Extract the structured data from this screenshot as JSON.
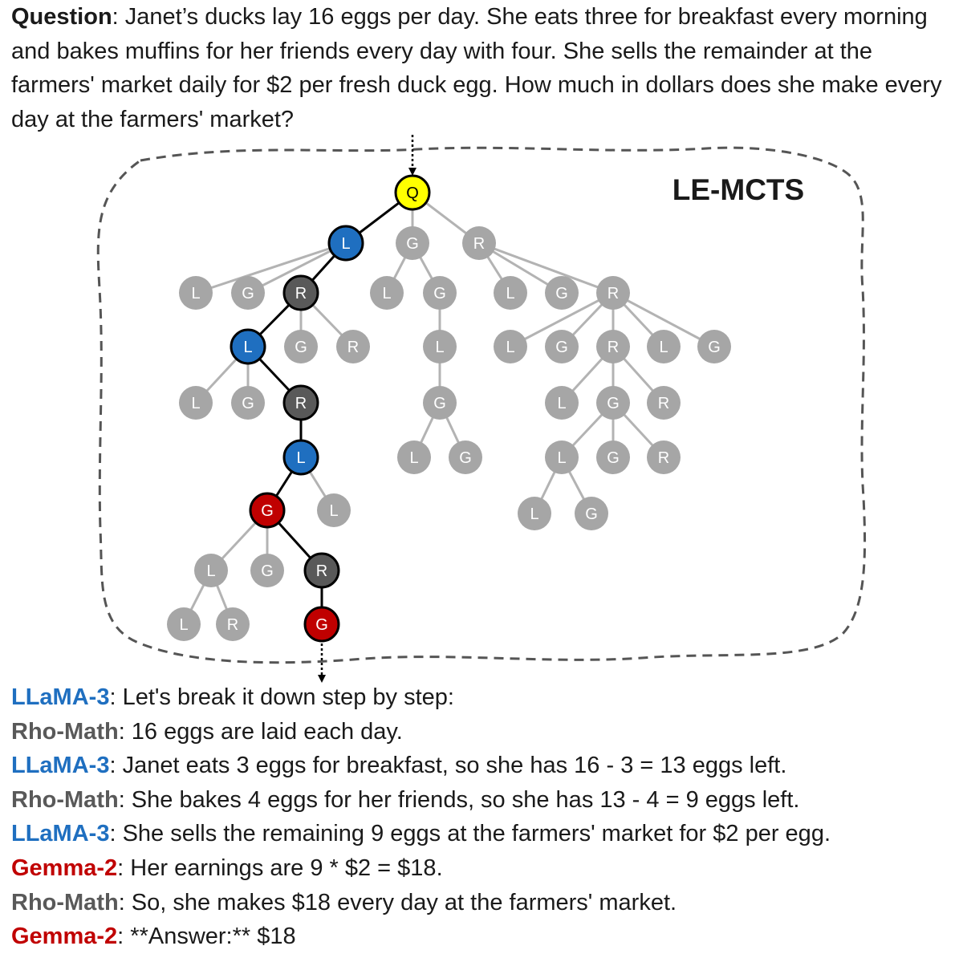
{
  "question": {
    "label": "Question",
    "text": "Janet’s ducks lay 16 eggs per day. She eats three for breakfast every morning and bakes muffins for her friends every day with four. She sells the remainder at the farmers' market daily for $2 per fresh duck egg. How much in dollars does she make every day at the farmers' market?"
  },
  "diagram": {
    "title": "LE-MCTS",
    "colors": {
      "llama": "#1f6fc0",
      "gemma": "#c00000",
      "rho": "#595959",
      "query": "#ffff00",
      "inactive": "#a6a6a6",
      "path_edge": "#000000",
      "inactive_edge": "#b3b3b3"
    },
    "nodes": [
      {
        "id": "q",
        "label": "Q",
        "kind": "query",
        "selected": true
      },
      {
        "id": "n1",
        "label": "L",
        "kind": "llama",
        "selected": true,
        "parent": "q"
      },
      {
        "id": "n2",
        "label": "G",
        "parent": "q"
      },
      {
        "id": "n3",
        "label": "R",
        "parent": "q"
      },
      {
        "id": "n4",
        "label": "L",
        "parent": "n1"
      },
      {
        "id": "n5",
        "label": "G",
        "parent": "n1"
      },
      {
        "id": "n6",
        "label": "R",
        "kind": "rho",
        "selected": true,
        "parent": "n1"
      },
      {
        "id": "n7",
        "label": "L",
        "parent": "n2"
      },
      {
        "id": "n8",
        "label": "G",
        "parent": "n2"
      },
      {
        "id": "n9",
        "label": "L",
        "parent": "n3"
      },
      {
        "id": "n10",
        "label": "G",
        "parent": "n3"
      },
      {
        "id": "n11",
        "label": "R",
        "parent": "n3"
      },
      {
        "id": "n12",
        "label": "L",
        "kind": "llama",
        "selected": true,
        "parent": "n6"
      },
      {
        "id": "n13",
        "label": "G",
        "parent": "n6"
      },
      {
        "id": "n14",
        "label": "R",
        "parent": "n6"
      },
      {
        "id": "n15",
        "label": "L",
        "parent": "n8"
      },
      {
        "id": "n16",
        "label": "L",
        "parent": "n11"
      },
      {
        "id": "n17",
        "label": "G",
        "parent": "n11"
      },
      {
        "id": "n18",
        "label": "R",
        "parent": "n11"
      },
      {
        "id": "n19",
        "label": "L",
        "parent": "n11"
      },
      {
        "id": "n20",
        "label": "G",
        "parent": "n11"
      },
      {
        "id": "n21",
        "label": "L",
        "parent": "n12"
      },
      {
        "id": "n22",
        "label": "G",
        "parent": "n12"
      },
      {
        "id": "n23",
        "label": "R",
        "kind": "rho",
        "selected": true,
        "parent": "n12"
      },
      {
        "id": "n24",
        "label": "G",
        "parent": "n15"
      },
      {
        "id": "n25",
        "label": "L",
        "parent": "n18"
      },
      {
        "id": "n26",
        "label": "G",
        "parent": "n18"
      },
      {
        "id": "n27",
        "label": "R",
        "parent": "n18"
      },
      {
        "id": "n28",
        "label": "L",
        "kind": "llama",
        "selected": true,
        "parent": "n23"
      },
      {
        "id": "n29",
        "label": "L",
        "parent": "n24"
      },
      {
        "id": "n30",
        "label": "G",
        "parent": "n24"
      },
      {
        "id": "n31",
        "label": "L",
        "parent": "n26"
      },
      {
        "id": "n32",
        "label": "G",
        "parent": "n26"
      },
      {
        "id": "n33",
        "label": "R",
        "parent": "n26"
      },
      {
        "id": "n34",
        "label": "G",
        "kind": "gemma",
        "selected": true,
        "parent": "n28"
      },
      {
        "id": "n35",
        "label": "L",
        "parent": "n28"
      },
      {
        "id": "n36",
        "label": "L",
        "parent": "n31"
      },
      {
        "id": "n37",
        "label": "G",
        "parent": "n31"
      },
      {
        "id": "n38",
        "label": "L",
        "parent": "n34"
      },
      {
        "id": "n39",
        "label": "G",
        "parent": "n34"
      },
      {
        "id": "n40",
        "label": "R",
        "kind": "rho",
        "selected": true,
        "parent": "n34"
      },
      {
        "id": "n41",
        "label": "L",
        "parent": "n38"
      },
      {
        "id": "n42",
        "label": "R",
        "parent": "n38"
      },
      {
        "id": "n43",
        "label": "G",
        "kind": "gemma",
        "selected": true,
        "parent": "n40"
      }
    ]
  },
  "steps": [
    {
      "model": "LLaMA-3",
      "color": "#1f6fc0",
      "text": "Let's break it down step by step:"
    },
    {
      "model": "Rho-Math",
      "color": "#595959",
      "text": "16 eggs are laid each day."
    },
    {
      "model": "LLaMA-3",
      "color": "#1f6fc0",
      "text": "Janet eats 3 eggs for breakfast, so she has 16 - 3 = 13 eggs left."
    },
    {
      "model": "Rho-Math",
      "color": "#595959",
      "text": "She bakes 4 eggs for her friends, so she has 13 - 4 = 9 eggs left."
    },
    {
      "model": "LLaMA-3",
      "color": "#1f6fc0",
      "text": "She sells the remaining 9 eggs at the farmers' market for $2 per egg."
    },
    {
      "model": "Gemma-2",
      "color": "#c00000",
      "text": "Her earnings are 9 * $2 = $18."
    },
    {
      "model": "Rho-Math",
      "color": "#595959",
      "text": "So, she makes $18 every day at the farmers' market."
    },
    {
      "model": "Gemma-2",
      "color": "#c00000",
      "text": "**Answer:** $18"
    }
  ]
}
